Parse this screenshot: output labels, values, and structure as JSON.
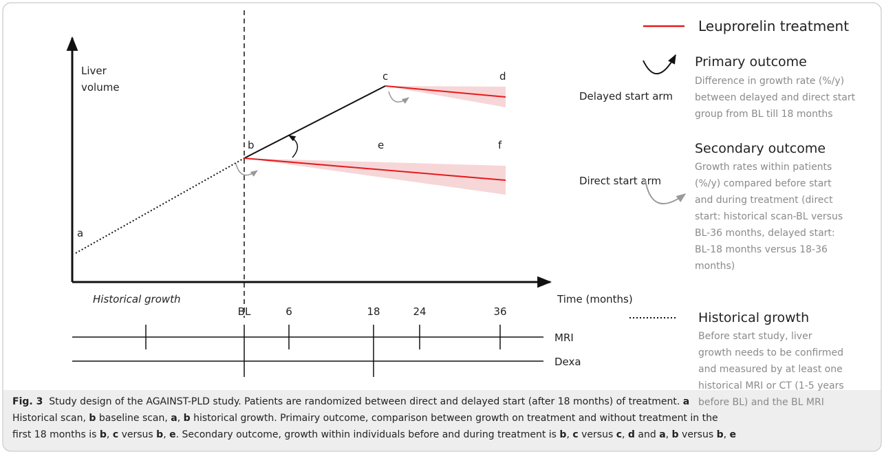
{
  "axes": {
    "y_label": [
      "Liver",
      "volume"
    ],
    "x_label": "Time (months)",
    "historical_label": "Historical growth"
  },
  "point_labels": [
    "a",
    "b",
    "c",
    "d",
    "e",
    "f"
  ],
  "arms": [
    "Delayed start arm",
    "Direct start arm"
  ],
  "timeline": {
    "ticks": [
      "BL",
      "6",
      "18",
      "24",
      "36"
    ],
    "rows": [
      "MRI",
      "Dexa"
    ]
  },
  "legend": {
    "treatment": "Leuprorelin treatment",
    "primary": {
      "title": "Primary outcome",
      "lines": [
        "Difference in growth rate (%/y)",
        "between delayed and direct start",
        "group from BL till 18 months"
      ]
    },
    "secondary": {
      "title": "Secondary outcome",
      "lines": [
        "Growth rates within patients",
        "(%/y) compared before start",
        "and during treatment (direct",
        "start: historical scan-BL versus",
        "BL-36 months, delayed start:",
        "BL-18 months versus 18-36",
        "months)"
      ]
    },
    "historical": {
      "title": "Historical growth",
      "lines": [
        "Before start study, liver",
        "growth needs to be confirmed",
        "and measured by at least one",
        "historical MRI or CT (1-5 years",
        "before BL) and the BL MRI"
      ]
    }
  },
  "caption": {
    "lines": [
      [
        {
          "text": "Fig. 3",
          "bold": true
        },
        {
          "text": "  Study design of the AGAINST-PLD study. Patients are randomized between direct and delayed start (after 18 months) of treatment. "
        },
        {
          "text": "a",
          "bold": true
        }
      ],
      [
        {
          "text": "Historical scan, "
        },
        {
          "text": "b",
          "bold": true
        },
        {
          "text": " baseline scan, "
        },
        {
          "text": "a",
          "bold": true
        },
        {
          "text": ", "
        },
        {
          "text": "b",
          "bold": true
        },
        {
          "text": " historical growth. Primairy outcome, comparison between growth on treatment and without treatment in the"
        }
      ],
      [
        {
          "text": "first 18 months is "
        },
        {
          "text": "b",
          "bold": true
        },
        {
          "text": ", "
        },
        {
          "text": "c",
          "bold": true
        },
        {
          "text": " versus "
        },
        {
          "text": "b",
          "bold": true
        },
        {
          "text": ", "
        },
        {
          "text": "e",
          "bold": true
        },
        {
          "text": ". Secondary outcome, growth within individuals before and during treatment is "
        },
        {
          "text": "b",
          "bold": true
        },
        {
          "text": ", "
        },
        {
          "text": "c",
          "bold": true
        },
        {
          "text": " versus "
        },
        {
          "text": "c",
          "bold": true
        },
        {
          "text": ", "
        },
        {
          "text": "d",
          "bold": true
        },
        {
          "text": " and "
        },
        {
          "text": "a",
          "bold": true
        },
        {
          "text": ", "
        },
        {
          "text": "b",
          "bold": true
        },
        {
          "text": " versus "
        },
        {
          "text": "b",
          "bold": true
        },
        {
          "text": ", "
        },
        {
          "text": "e",
          "bold": true
        }
      ]
    ]
  }
}
